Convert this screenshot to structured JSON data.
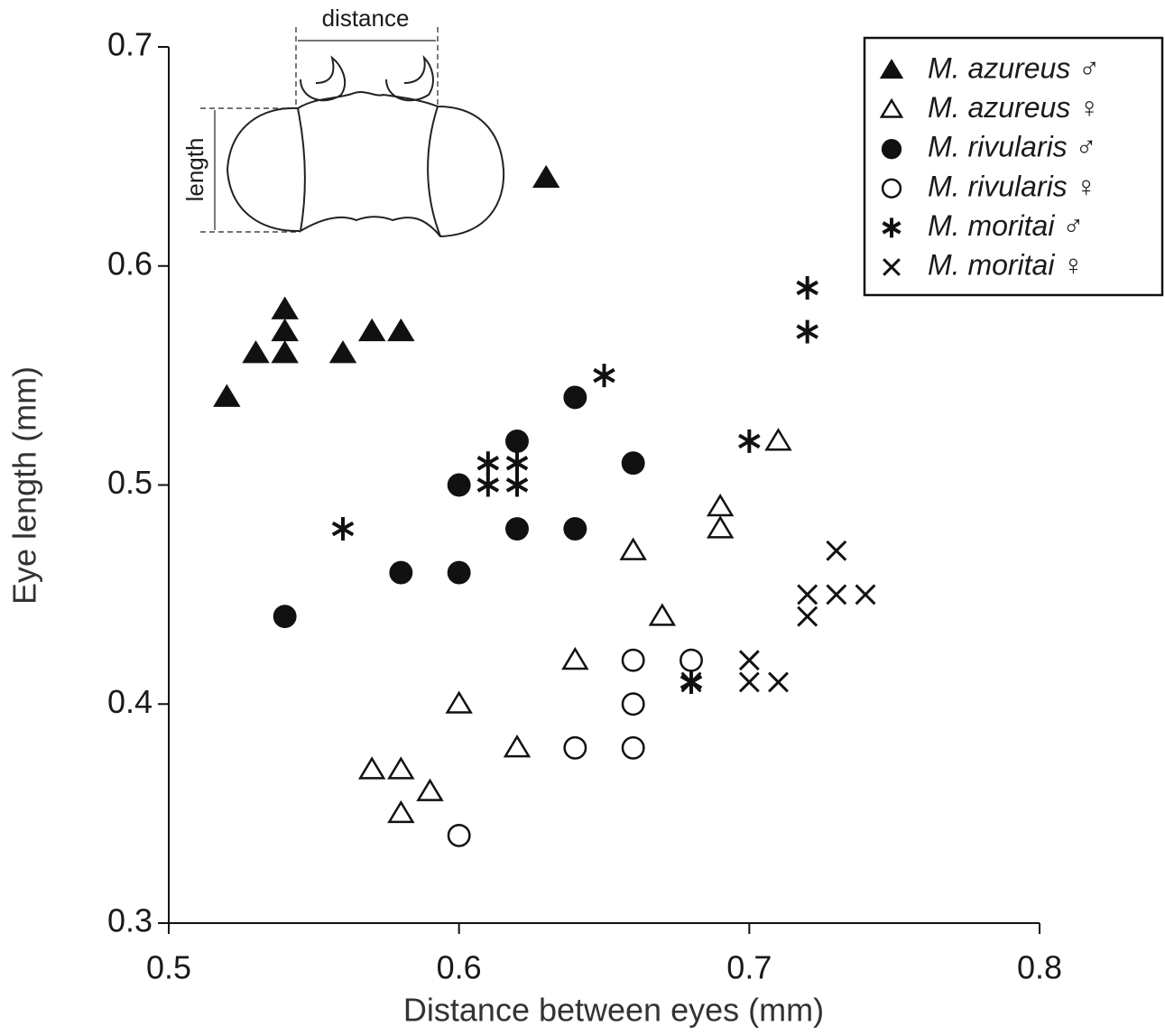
{
  "chart_data": {
    "type": "scatter",
    "x_label": "Distance between eyes (mm)",
    "y_label": "Eye length (mm)",
    "annotations": [
      "distance",
      "length"
    ],
    "xlim": [
      0.5,
      0.8
    ],
    "xticks": [
      0.5,
      0.6,
      0.7,
      0.8
    ],
    "ylim": [
      0.3,
      0.7
    ],
    "yticks": [
      0.3,
      0.4,
      0.5,
      0.6,
      0.7
    ],
    "legend": "upper right",
    "series": [
      {
        "name": "M. azureus ♂",
        "color": "#111111",
        "marker": "triangle-filled",
        "x": [
          0.52,
          0.53,
          0.54,
          0.54,
          0.54,
          0.56,
          0.57,
          0.58,
          0.63
        ],
        "values": [
          0.54,
          0.56,
          0.58,
          0.57,
          0.56,
          0.56,
          0.57,
          0.57,
          0.64
        ]
      },
      {
        "name": "M. azureus ♀",
        "color": "#111111",
        "marker": "triangle-open",
        "x": [
          0.57,
          0.58,
          0.58,
          0.59,
          0.6,
          0.62,
          0.64,
          0.66,
          0.67,
          0.69,
          0.69,
          0.71
        ],
        "values": [
          0.37,
          0.37,
          0.35,
          0.36,
          0.4,
          0.38,
          0.42,
          0.47,
          0.44,
          0.49,
          0.48,
          0.52
        ]
      },
      {
        "name": "M. rivularis ♂",
        "color": "#111111",
        "marker": "circle-filled",
        "x": [
          0.54,
          0.58,
          0.6,
          0.6,
          0.62,
          0.62,
          0.64,
          0.64,
          0.66
        ],
        "values": [
          0.44,
          0.46,
          0.46,
          0.5,
          0.52,
          0.48,
          0.54,
          0.48,
          0.51
        ]
      },
      {
        "name": "M. rivularis ♀",
        "color": "#111111",
        "marker": "circle-open",
        "x": [
          0.6,
          0.64,
          0.66,
          0.66,
          0.66,
          0.68
        ],
        "values": [
          0.34,
          0.38,
          0.38,
          0.4,
          0.42,
          0.42
        ]
      },
      {
        "name": "M. moritai ♂",
        "color": "#111111",
        "marker": "asterisk",
        "x": [
          0.56,
          0.61,
          0.61,
          0.62,
          0.62,
          0.65,
          0.68,
          0.7,
          0.72,
          0.72
        ],
        "values": [
          0.48,
          0.51,
          0.5,
          0.51,
          0.5,
          0.55,
          0.41,
          0.52,
          0.59,
          0.57
        ]
      },
      {
        "name": "M. moritai ♀",
        "color": "#111111",
        "marker": "cross",
        "x": [
          0.68,
          0.7,
          0.7,
          0.71,
          0.72,
          0.72,
          0.73,
          0.73,
          0.74
        ],
        "values": [
          0.41,
          0.42,
          0.41,
          0.41,
          0.45,
          0.44,
          0.47,
          0.45,
          0.45
        ]
      }
    ]
  }
}
